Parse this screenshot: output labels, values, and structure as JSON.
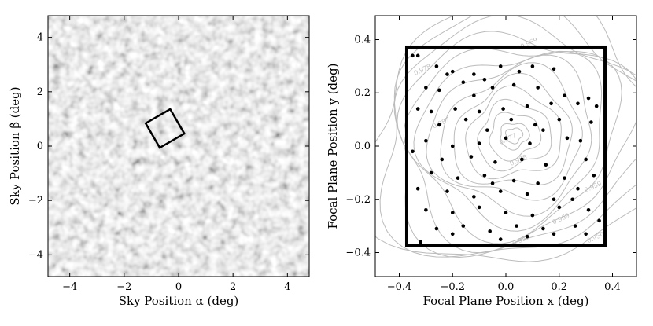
{
  "chart_data": [
    {
      "type": "heatmap",
      "title": "",
      "xlabel": "Sky Position α (deg)",
      "ylabel": "Sky Position β (deg)",
      "xlim": [
        -4.8,
        4.8
      ],
      "ylim": [
        -4.8,
        4.8
      ],
      "xticks": [
        -4,
        -2,
        0,
        2,
        4
      ],
      "yticks": [
        -4,
        -2,
        0,
        2,
        4
      ],
      "xtick_labels": [
        "−4",
        "−2",
        "0",
        "2",
        "4"
      ],
      "ytick_labels": [
        "−4",
        "−2",
        "0",
        "2",
        "4"
      ],
      "grid": false,
      "overlay_square": {
        "center": [
          -0.5,
          0.65
        ],
        "half_size": 0.52,
        "rotation_deg": 30,
        "color": "#000000"
      }
    },
    {
      "type": "scatter",
      "title": "",
      "xlabel": "Focal Plane Position x (deg)",
      "ylabel": "Focal Plane Position y (deg)",
      "xlim": [
        -0.49,
        0.49
      ],
      "ylim": [
        -0.49,
        0.49
      ],
      "xticks": [
        -0.4,
        -0.2,
        0.0,
        0.2,
        0.4
      ],
      "yticks": [
        -0.4,
        -0.2,
        0.0,
        0.2,
        0.4
      ],
      "xtick_labels": [
        "−0.4",
        "−0.2",
        "0.0",
        "0.2",
        "0.4"
      ],
      "ytick_labels": [
        "−0.4",
        "−0.2",
        "0.0",
        "0.2",
        "0.4"
      ],
      "grid": false,
      "frame": {
        "x": [
          -0.372,
          0.372
        ],
        "y": [
          -0.372,
          0.372
        ],
        "color": "#000000"
      },
      "contour_center": [
        0.03,
        0.04
      ],
      "contour_color": "#bbbbbb",
      "contour_labels": [
        {
          "text": "0.969",
          "x": 0.09,
          "y": 0.38
        },
        {
          "text": "0.978",
          "x": -0.31,
          "y": 0.28
        },
        {
          "text": "0.987",
          "x": -0.24,
          "y": 0.08
        },
        {
          "text": "0.998",
          "x": 0.05,
          "y": -0.06
        },
        {
          "text": "0.969",
          "x": 0.21,
          "y": -0.28
        },
        {
          "text": "0.959",
          "x": 0.06,
          "y": -0.36
        },
        {
          "text": "0.950",
          "x": 0.34,
          "y": -0.35
        },
        {
          "text": "0.959",
          "x": 0.33,
          "y": -0.16
        },
        {
          "text": "0.977",
          "x": 0.01,
          "y": 0.02
        }
      ],
      "points": [
        [
          -0.35,
          0.34
        ],
        [
          -0.33,
          0.34
        ],
        [
          -0.26,
          0.3
        ],
        [
          -0.2,
          0.28
        ],
        [
          -0.12,
          0.27
        ],
        [
          -0.02,
          0.3
        ],
        [
          -0.08,
          0.25
        ],
        [
          0.05,
          0.28
        ],
        [
          0.1,
          0.3
        ],
        [
          0.18,
          0.29
        ],
        [
          -0.3,
          0.22
        ],
        [
          -0.25,
          0.21
        ],
        [
          -0.16,
          0.24
        ],
        [
          -0.05,
          0.22
        ],
        [
          0.03,
          0.23
        ],
        [
          0.12,
          0.22
        ],
        [
          0.22,
          0.19
        ],
        [
          0.27,
          0.16
        ],
        [
          0.31,
          0.18
        ],
        [
          0.34,
          0.15
        ],
        [
          -0.33,
          0.14
        ],
        [
          -0.28,
          0.13
        ],
        [
          -0.19,
          0.14
        ],
        [
          -0.1,
          0.13
        ],
        [
          -0.01,
          0.14
        ],
        [
          0.08,
          0.15
        ],
        [
          0.17,
          0.16
        ],
        [
          -0.25,
          0.08
        ],
        [
          -0.15,
          0.1
        ],
        [
          -0.07,
          0.06
        ],
        [
          0.02,
          0.1
        ],
        [
          0.11,
          0.08
        ],
        [
          0.2,
          0.1
        ],
        [
          0.32,
          0.09
        ],
        [
          -0.3,
          0.02
        ],
        [
          -0.2,
          0.0
        ],
        [
          -0.1,
          0.01
        ],
        [
          0.0,
          0.03
        ],
        [
          0.09,
          0.01
        ],
        [
          0.23,
          0.03
        ],
        [
          0.28,
          0.02
        ],
        [
          -0.35,
          -0.02
        ],
        [
          -0.24,
          -0.05
        ],
        [
          -0.13,
          -0.04
        ],
        [
          -0.04,
          -0.06
        ],
        [
          0.06,
          -0.05
        ],
        [
          0.15,
          -0.07
        ],
        [
          0.3,
          -0.05
        ],
        [
          -0.28,
          -0.1
        ],
        [
          -0.18,
          -0.12
        ],
        [
          -0.08,
          -0.11
        ],
        [
          0.03,
          -0.13
        ],
        [
          0.12,
          -0.14
        ],
        [
          0.22,
          -0.12
        ],
        [
          0.33,
          -0.11
        ],
        [
          -0.33,
          -0.16
        ],
        [
          -0.22,
          -0.17
        ],
        [
          -0.12,
          -0.19
        ],
        [
          -0.02,
          -0.17
        ],
        [
          0.08,
          -0.18
        ],
        [
          0.18,
          -0.2
        ],
        [
          0.27,
          -0.16
        ],
        [
          -0.3,
          -0.24
        ],
        [
          -0.2,
          -0.25
        ],
        [
          -0.1,
          -0.23
        ],
        [
          0.0,
          -0.25
        ],
        [
          0.1,
          -0.26
        ],
        [
          0.2,
          -0.23
        ],
        [
          0.31,
          -0.24
        ],
        [
          -0.26,
          -0.31
        ],
        [
          -0.16,
          -0.3
        ],
        [
          -0.06,
          -0.32
        ],
        [
          0.04,
          -0.3
        ],
        [
          0.14,
          -0.31
        ],
        [
          0.26,
          -0.3
        ],
        [
          0.35,
          -0.28
        ],
        [
          -0.32,
          -0.36
        ],
        [
          -0.2,
          -0.33
        ],
        [
          -0.02,
          -0.35
        ],
        [
          0.08,
          -0.34
        ],
        [
          0.18,
          -0.33
        ],
        [
          0.3,
          -0.33
        ],
        [
          -0.12,
          0.19
        ],
        [
          0.14,
          0.06
        ],
        [
          -0.05,
          -0.14
        ],
        [
          0.25,
          -0.2
        ],
        [
          -0.22,
          0.27
        ]
      ]
    }
  ]
}
